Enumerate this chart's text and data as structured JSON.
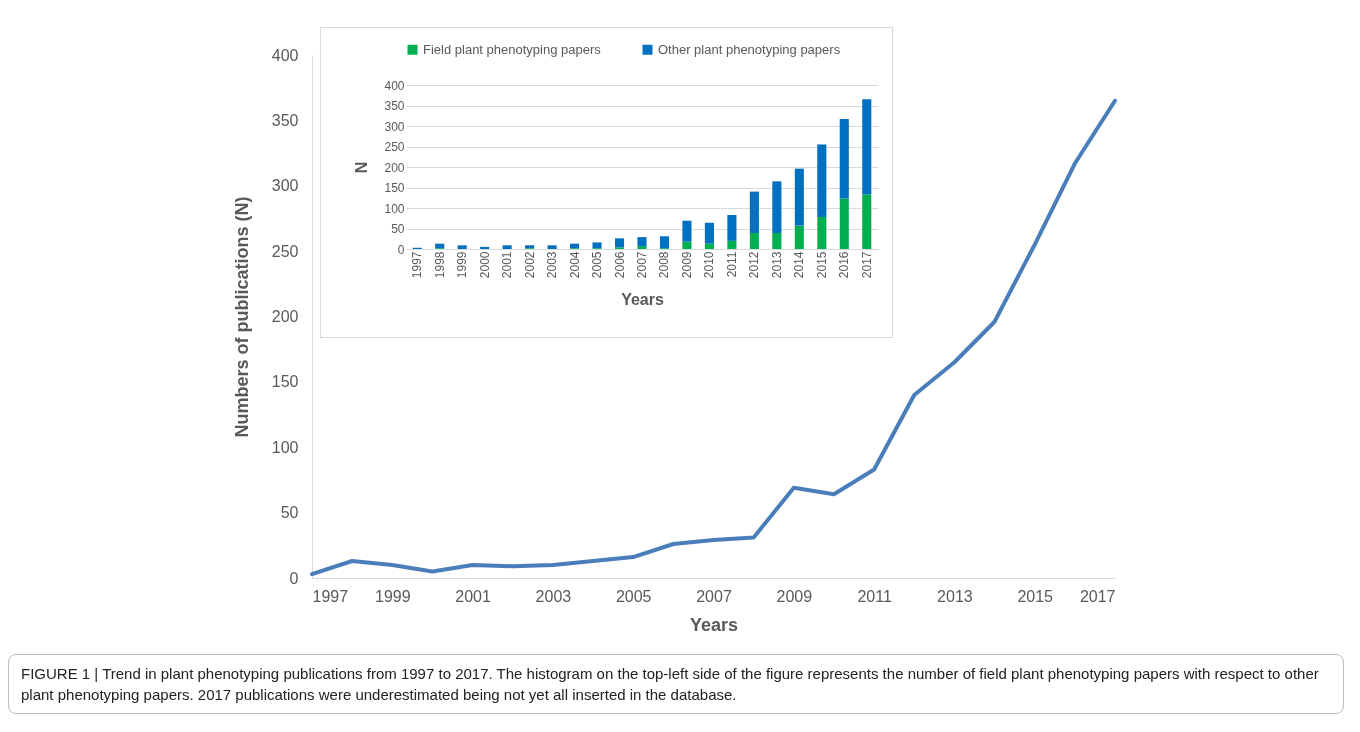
{
  "chart_data": [
    {
      "type": "line",
      "xlabel": "Years",
      "ylabel": "Numbers of publications (N)",
      "x": [
        1997,
        1998,
        1999,
        2000,
        2001,
        2002,
        2003,
        2004,
        2005,
        2006,
        2007,
        2008,
        2009,
        2010,
        2011,
        2012,
        2013,
        2014,
        2015,
        2016,
        2017
      ],
      "series": [
        {
          "color": "#4a7ebb",
          "values": [
            3,
            13,
            10,
            5,
            10,
            9,
            10,
            13,
            16,
            26,
            29,
            31,
            69,
            64,
            83,
            140,
            165,
            196,
            255,
            317,
            365
          ]
        }
      ],
      "xlim": [
        1997,
        2017
      ],
      "xticks": [
        1997,
        1999,
        2001,
        2003,
        2005,
        2007,
        2009,
        2011,
        2013,
        2015,
        2017
      ],
      "ylim": [
        0,
        400
      ],
      "yticks": [
        0,
        50,
        100,
        150,
        200,
        250,
        300,
        350,
        400
      ],
      "grid": false,
      "annotations": [
        "FIGURE 1 | Trend in plant phenotyping publications from 1997 to 2017. The histogram on the top-left side of the figure represents the number of field plant phenotyping papers with respect to other plant phenotyping papers. 2017 publications were underestimated being not yet all inserted in the database."
      ]
    },
    {
      "type": "bar",
      "stacked": true,
      "xlabel": "Years",
      "ylabel": "N",
      "categories": [
        "1997",
        "1998",
        "1999",
        "2000",
        "2001",
        "2002",
        "2003",
        "2004",
        "2005",
        "2006",
        "2007",
        "2008",
        "2009",
        "2010",
        "2011",
        "2012",
        "2013",
        "2014",
        "2015",
        "2016",
        "2017"
      ],
      "series": [
        {
          "name": "Field plant phenotyping papers",
          "color": "#00b050",
          "values": [
            0,
            2,
            null,
            0,
            null,
            2,
            null,
            2,
            2,
            4,
            7,
            2,
            18,
            13,
            20,
            39,
            39,
            57,
            78,
            123,
            133
          ]
        },
        {
          "name": "Other plant phenotyping papers",
          "color": "#0070c0",
          "values": [
            3,
            11,
            9,
            5,
            9,
            7,
            9,
            11,
            14,
            22,
            22,
            29,
            51,
            51,
            63,
            101,
            126,
            139,
            177,
            194,
            232
          ]
        }
      ],
      "ylim": [
        0,
        400
      ],
      "yticks": [
        0,
        50,
        100,
        150,
        200,
        250,
        300,
        350,
        400
      ],
      "grid": "y",
      "legend": "top"
    }
  ]
}
